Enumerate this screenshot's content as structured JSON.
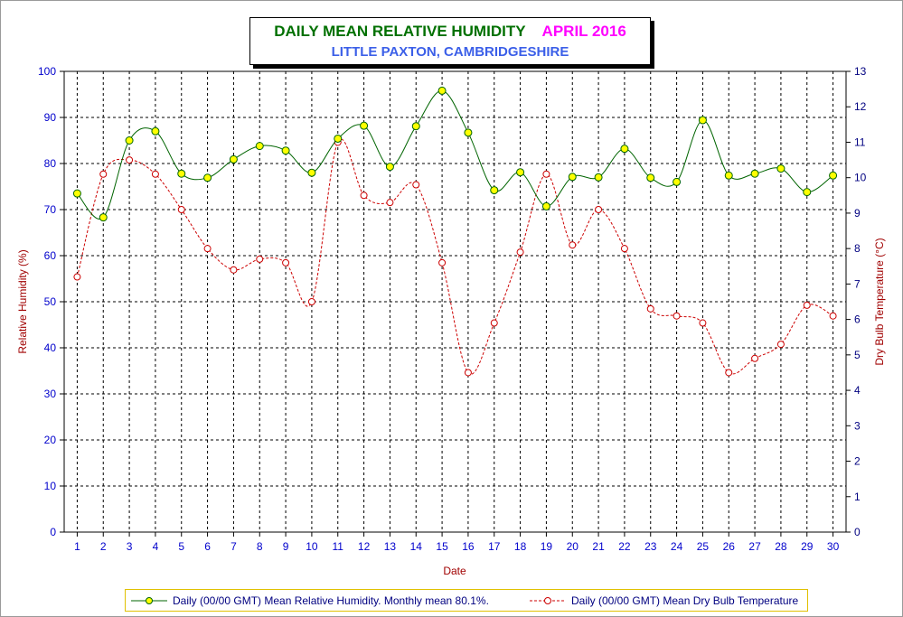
{
  "title": {
    "main": "DAILY MEAN RELATIVE HUMIDITY",
    "month": "APRIL 2016",
    "subtitle": "LITTLE PAXTON, CAMBRIDGESHIRE"
  },
  "colors": {
    "humidity_line": "#006400",
    "humidity_marker": "#ffff00",
    "temperature_line": "#cc0000",
    "left_axis": "#0000cc",
    "right_axis": "#000080",
    "axis_title": "#a00000",
    "grid": "#000000"
  },
  "chart_data": {
    "type": "line",
    "xlabel": "Date",
    "ylabel": "Relative Humidity (%)",
    "y2label": "Dry Bulb Temperature (°C)",
    "ylim": [
      0,
      100
    ],
    "y2lim": [
      0,
      13
    ],
    "yticks": [
      0,
      10,
      20,
      30,
      40,
      50,
      60,
      70,
      80,
      90,
      100
    ],
    "y2ticks": [
      0,
      1,
      2,
      3,
      4,
      5,
      6,
      7,
      8,
      9,
      10,
      11,
      12,
      13
    ],
    "grid": true,
    "legend_position": "bottom",
    "x": [
      1,
      2,
      3,
      4,
      5,
      6,
      7,
      8,
      9,
      10,
      11,
      12,
      13,
      14,
      15,
      16,
      17,
      18,
      19,
      20,
      21,
      22,
      23,
      24,
      25,
      26,
      27,
      28,
      29,
      30
    ],
    "series": [
      {
        "name": "Daily (00/00 GMT) Mean Relative Humidity. Monthly mean 80.1%.",
        "axis": "left",
        "marker": "circle",
        "line": "solid",
        "values": [
          73.5,
          68.3,
          85.0,
          87.0,
          77.8,
          76.9,
          80.9,
          83.8,
          82.8,
          78.0,
          85.4,
          88.2,
          79.3,
          88.1,
          95.8,
          86.7,
          74.2,
          78.1,
          70.7,
          77.1,
          77.0,
          83.2,
          76.9,
          76.0,
          89.4,
          77.4,
          77.8,
          78.9,
          73.8,
          77.4
        ]
      },
      {
        "name": "Daily (00/00 GMT) Mean Dry Bulb Temperature",
        "axis": "right",
        "marker": "circle-open",
        "line": "dashed",
        "values": [
          7.2,
          10.1,
          10.5,
          10.1,
          9.1,
          8.0,
          7.4,
          7.7,
          7.6,
          6.5,
          11.0,
          9.5,
          9.3,
          9.8,
          7.6,
          4.5,
          5.9,
          7.9,
          10.1,
          8.1,
          9.1,
          8.0,
          6.3,
          6.1,
          5.9,
          4.5,
          4.9,
          5.3,
          6.4,
          6.1
        ]
      }
    ]
  }
}
